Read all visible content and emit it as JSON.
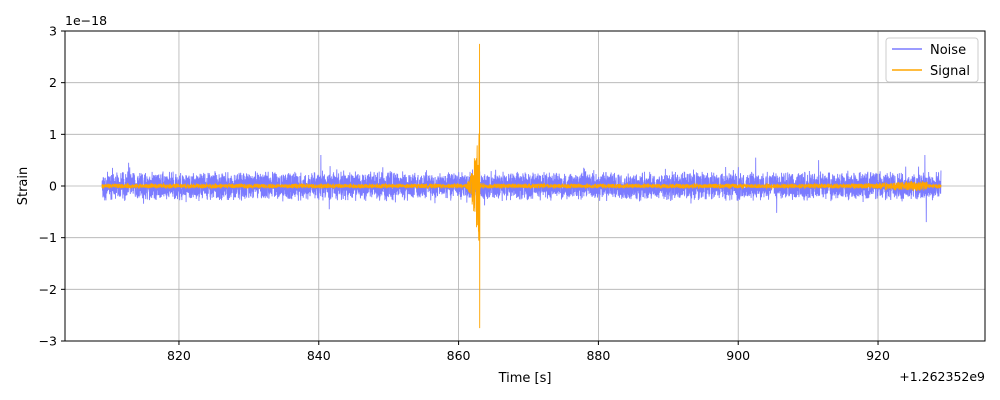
{
  "chart_data": {
    "type": "line",
    "xlabel": "Time [s]",
    "ylabel": "Strain",
    "x_offset_label": "+1.262352e9",
    "y_scale_label": "1e−18",
    "xlim": [
      803.7,
      935.3
    ],
    "ylim": [
      -3.0,
      3.0
    ],
    "x_tick_labels": [
      "820",
      "840",
      "860",
      "880",
      "900",
      "920"
    ],
    "x_ticks": [
      820,
      840,
      860,
      880,
      900,
      920
    ],
    "y_tick_labels": [
      "−3",
      "−2",
      "−1",
      "0",
      "1",
      "2",
      "3"
    ],
    "y_ticks": [
      -3,
      -2,
      -1,
      0,
      1,
      2,
      3
    ],
    "grid": true,
    "legend_position": "top-right",
    "x_range_data": [
      809.0,
      929.0
    ],
    "series": [
      {
        "name": "Noise",
        "color": "#7b7bff",
        "typical_amplitude": 0.3,
        "peak_values": [
          {
            "x": 809.0,
            "y": 0.0
          },
          {
            "x": 810.5,
            "y": 0.35
          },
          {
            "x": 812.8,
            "y": 0.45
          },
          {
            "x": 840.3,
            "y": 0.6
          },
          {
            "x": 841.5,
            "y": -0.45
          },
          {
            "x": 902.5,
            "y": 0.55
          },
          {
            "x": 905.5,
            "y": -0.52
          },
          {
            "x": 911.5,
            "y": 0.5
          },
          {
            "x": 926.7,
            "y": 0.6
          },
          {
            "x": 926.9,
            "y": -0.7
          },
          {
            "x": 929.0,
            "y": 0.3
          }
        ]
      },
      {
        "name": "Signal",
        "color": "#ffa500",
        "typical_amplitude": 0.05,
        "event": {
          "x_start": 860.5,
          "x_peak": 863.0,
          "max_y": 2.75,
          "min_y": -2.75,
          "envelope_at_862": 1.3
        },
        "late_rise": {
          "x_start": 910.0,
          "x_end": 927.0,
          "amplitude": 0.12
        }
      }
    ]
  }
}
